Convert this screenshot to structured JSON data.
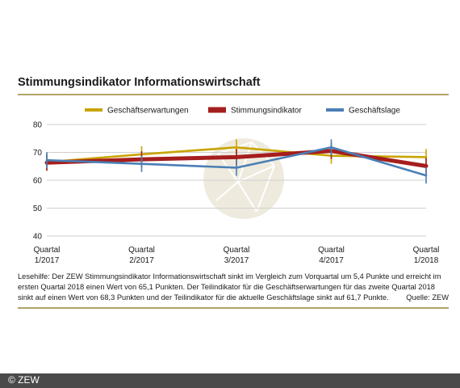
{
  "title": "Stimmungsindikator Informationswirtschaft",
  "caption": "Lesehilfe: Der ZEW Stimmungsindikator Informationswirtschaft sinkt im Vergleich zum Vorquartal um 5,4 Punkte und erreicht im ersten Quartal 2018 einen Wert von 65,1 Punkten. Der Teilindikator für die Geschäftserwartungen für das zweite Quartal 2018 sinkt auf einen Wert von 68,3 Punkten und der Teilindikator für die aktuelle Geschäftslage sinkt auf 61,7 Punkte.",
  "source": "Quelle: ZEW",
  "footer": "© ZEW",
  "chart_data": {
    "type": "line",
    "categories": [
      "Quartal 1/2017",
      "Quartal 2/2017",
      "Quartal 3/2017",
      "Quartal 4/2017",
      "Quartal 1/2018"
    ],
    "category_lines": [
      [
        "Quartal",
        "1/2017"
      ],
      [
        "Quartal",
        "2/2017"
      ],
      [
        "Quartal",
        "3/2017"
      ],
      [
        "Quartal",
        "4/2017"
      ],
      [
        "Quartal",
        "1/2018"
      ]
    ],
    "yticks": [
      40,
      50,
      60,
      70,
      80
    ],
    "ylim": [
      40,
      80
    ],
    "grid": true,
    "legend_position": "top",
    "series": [
      {
        "name": "Geschäftserwartungen",
        "color": "#c9a400",
        "values": [
          66.5,
          69.3,
          71.8,
          68.8,
          68.3
        ]
      },
      {
        "name": "Stimmungsindikator",
        "color": "#a51e1e",
        "values": [
          66.3,
          67.5,
          68.3,
          70.5,
          65.1
        ]
      },
      {
        "name": "Geschäftslage",
        "color": "#4a7fb5",
        "values": [
          67.2,
          65.9,
          64.5,
          71.8,
          61.7
        ]
      }
    ]
  }
}
